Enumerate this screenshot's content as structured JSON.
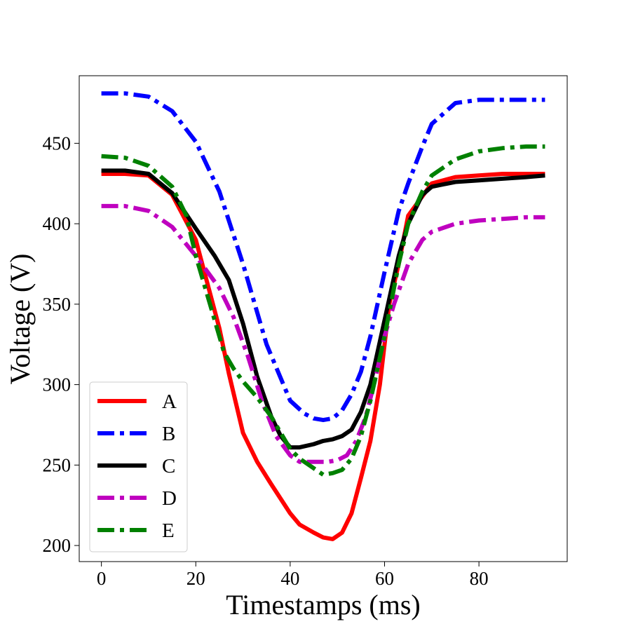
{
  "chart_data": {
    "type": "line",
    "xlabel": "Timestamps (ms)",
    "ylabel": "Voltage (V)",
    "xlim": [
      -4.7,
      98.7
    ],
    "ylim": [
      190,
      492
    ],
    "xticks": [
      0,
      20,
      40,
      60,
      80
    ],
    "yticks": [
      200,
      250,
      300,
      350,
      400,
      450
    ],
    "grid": false,
    "legend_position": "lower-left",
    "series": [
      {
        "name": "A",
        "color": "#ff0000",
        "style": "solid",
        "x": [
          0,
          5,
          10,
          15,
          20,
          22,
          25,
          27,
          30,
          33,
          36,
          40,
          42,
          45,
          47,
          49,
          51,
          53,
          55,
          57,
          59,
          61,
          63,
          65,
          70,
          75,
          80,
          85,
          90,
          94
        ],
        "y": [
          431,
          431,
          430,
          418,
          390,
          368,
          335,
          307,
          270,
          252,
          238,
          220,
          213,
          208,
          205,
          204,
          208,
          220,
          242,
          265,
          300,
          350,
          375,
          405,
          425,
          429,
          430,
          431,
          431,
          431
        ]
      },
      {
        "name": "B",
        "color": "#0000ff",
        "style": "dashdot",
        "x": [
          0,
          5,
          10,
          15,
          20,
          25,
          30,
          35,
          40,
          43,
          45,
          47,
          49,
          51,
          53,
          55,
          57,
          60,
          63,
          65,
          68,
          70,
          75,
          80,
          85,
          90,
          94
        ],
        "y": [
          481,
          481,
          479,
          470,
          451,
          420,
          375,
          325,
          290,
          282,
          279,
          278,
          279,
          284,
          294,
          308,
          330,
          370,
          408,
          425,
          448,
          462,
          475,
          477,
          477,
          477,
          477
        ]
      },
      {
        "name": "C",
        "color": "#000000",
        "style": "solid",
        "x": [
          0,
          5,
          10,
          15,
          20,
          24,
          27,
          30,
          33,
          36,
          38,
          40,
          42,
          45,
          47,
          49,
          51,
          53,
          55,
          57,
          60,
          63,
          65,
          68,
          70,
          75,
          80,
          85,
          90,
          94
        ],
        "y": [
          433,
          433,
          431,
          419,
          397,
          380,
          365,
          338,
          305,
          280,
          268,
          261,
          261,
          263,
          265,
          266,
          268,
          272,
          283,
          300,
          340,
          380,
          400,
          418,
          423,
          426,
          427,
          428,
          429,
          430
        ]
      },
      {
        "name": "D",
        "color": "#bf00bf",
        "style": "dashdot",
        "x": [
          0,
          5,
          10,
          15,
          20,
          25,
          28,
          31,
          34,
          37,
          40,
          42,
          45,
          48,
          50,
          52,
          54,
          56,
          58,
          60,
          62,
          65,
          68,
          70,
          75,
          80,
          85,
          90,
          94
        ],
        "y": [
          411,
          411,
          408,
          398,
          380,
          360,
          342,
          318,
          290,
          268,
          256,
          252,
          252,
          252,
          253,
          256,
          265,
          280,
          303,
          330,
          350,
          375,
          390,
          395,
          400,
          402,
          403,
          404,
          404
        ]
      },
      {
        "name": "E",
        "color": "#008000",
        "style": "dashdot",
        "x": [
          0,
          5,
          10,
          15,
          18,
          20,
          23,
          26,
          28,
          30,
          33,
          36,
          40,
          42,
          45,
          47,
          49,
          51,
          53,
          55,
          57,
          60,
          63,
          65,
          68,
          70,
          75,
          80,
          85,
          90,
          94
        ],
        "y": [
          442,
          441,
          436,
          423,
          405,
          380,
          350,
          320,
          310,
          302,
          292,
          280,
          260,
          254,
          248,
          244,
          245,
          247,
          254,
          268,
          290,
          330,
          375,
          400,
          420,
          430,
          440,
          445,
          447,
          448,
          448
        ]
      }
    ]
  }
}
